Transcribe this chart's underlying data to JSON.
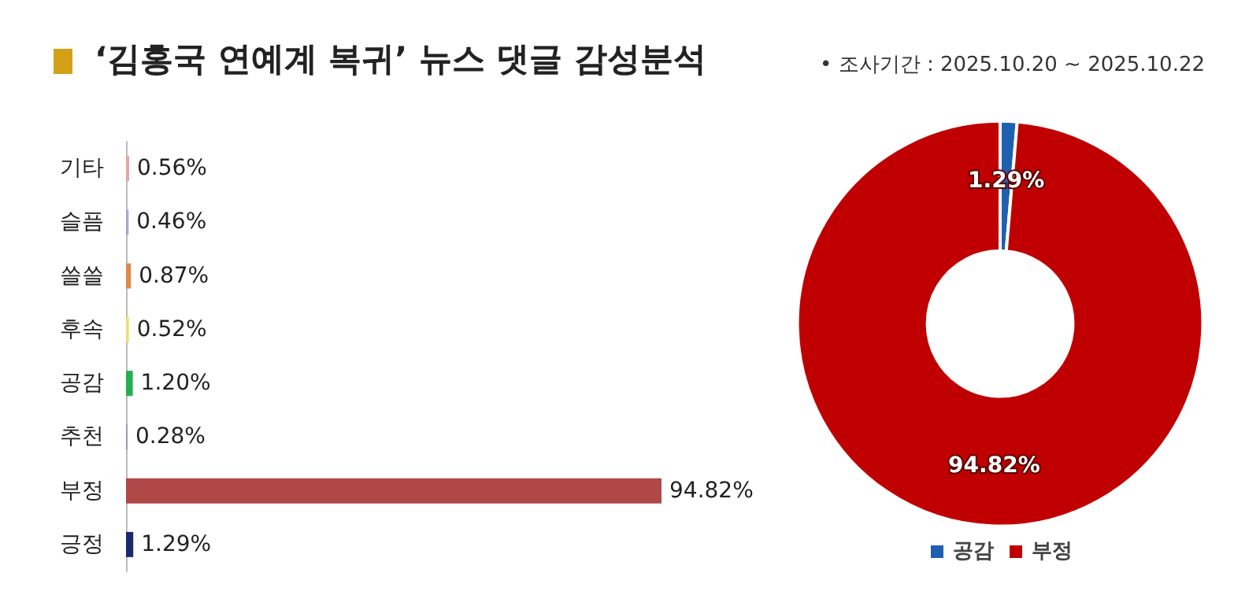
{
  "chart_data": [
    {
      "type": "bar",
      "orientation": "horizontal",
      "title": "‘김홍국 연예계 복귀’ 뉴스 댓글 감성분석",
      "categories": [
        "기타",
        "슬픔",
        "쓸쓸",
        "후속",
        "공감",
        "추천",
        "부정",
        "긍정"
      ],
      "values": [
        0.56,
        0.46,
        0.87,
        0.52,
        1.2,
        0.28,
        94.82,
        1.29
      ],
      "colors": [
        "#e8a4a4",
        "#a4a8d4",
        "#e08a4a",
        "#e8e070",
        "#22b050",
        "#9a9aae",
        "#b04848",
        "#1a2a6c"
      ],
      "value_labels": [
        "0.56%",
        "0.46%",
        "0.87%",
        "0.52%",
        "1.20%",
        "0.28%",
        "94.82%",
        "1.29%"
      ]
    },
    {
      "type": "donut",
      "subtitle": "• 조사기간 : 2025.10.20 ~ 2025.10.22",
      "categories": [
        "공감",
        "부정"
      ],
      "values": [
        1.29,
        94.82
      ],
      "colors": [
        "#1f5fb0",
        "#c00000"
      ],
      "value_labels": [
        "1.29%",
        "94.82%"
      ],
      "legend": "bottom"
    }
  ]
}
